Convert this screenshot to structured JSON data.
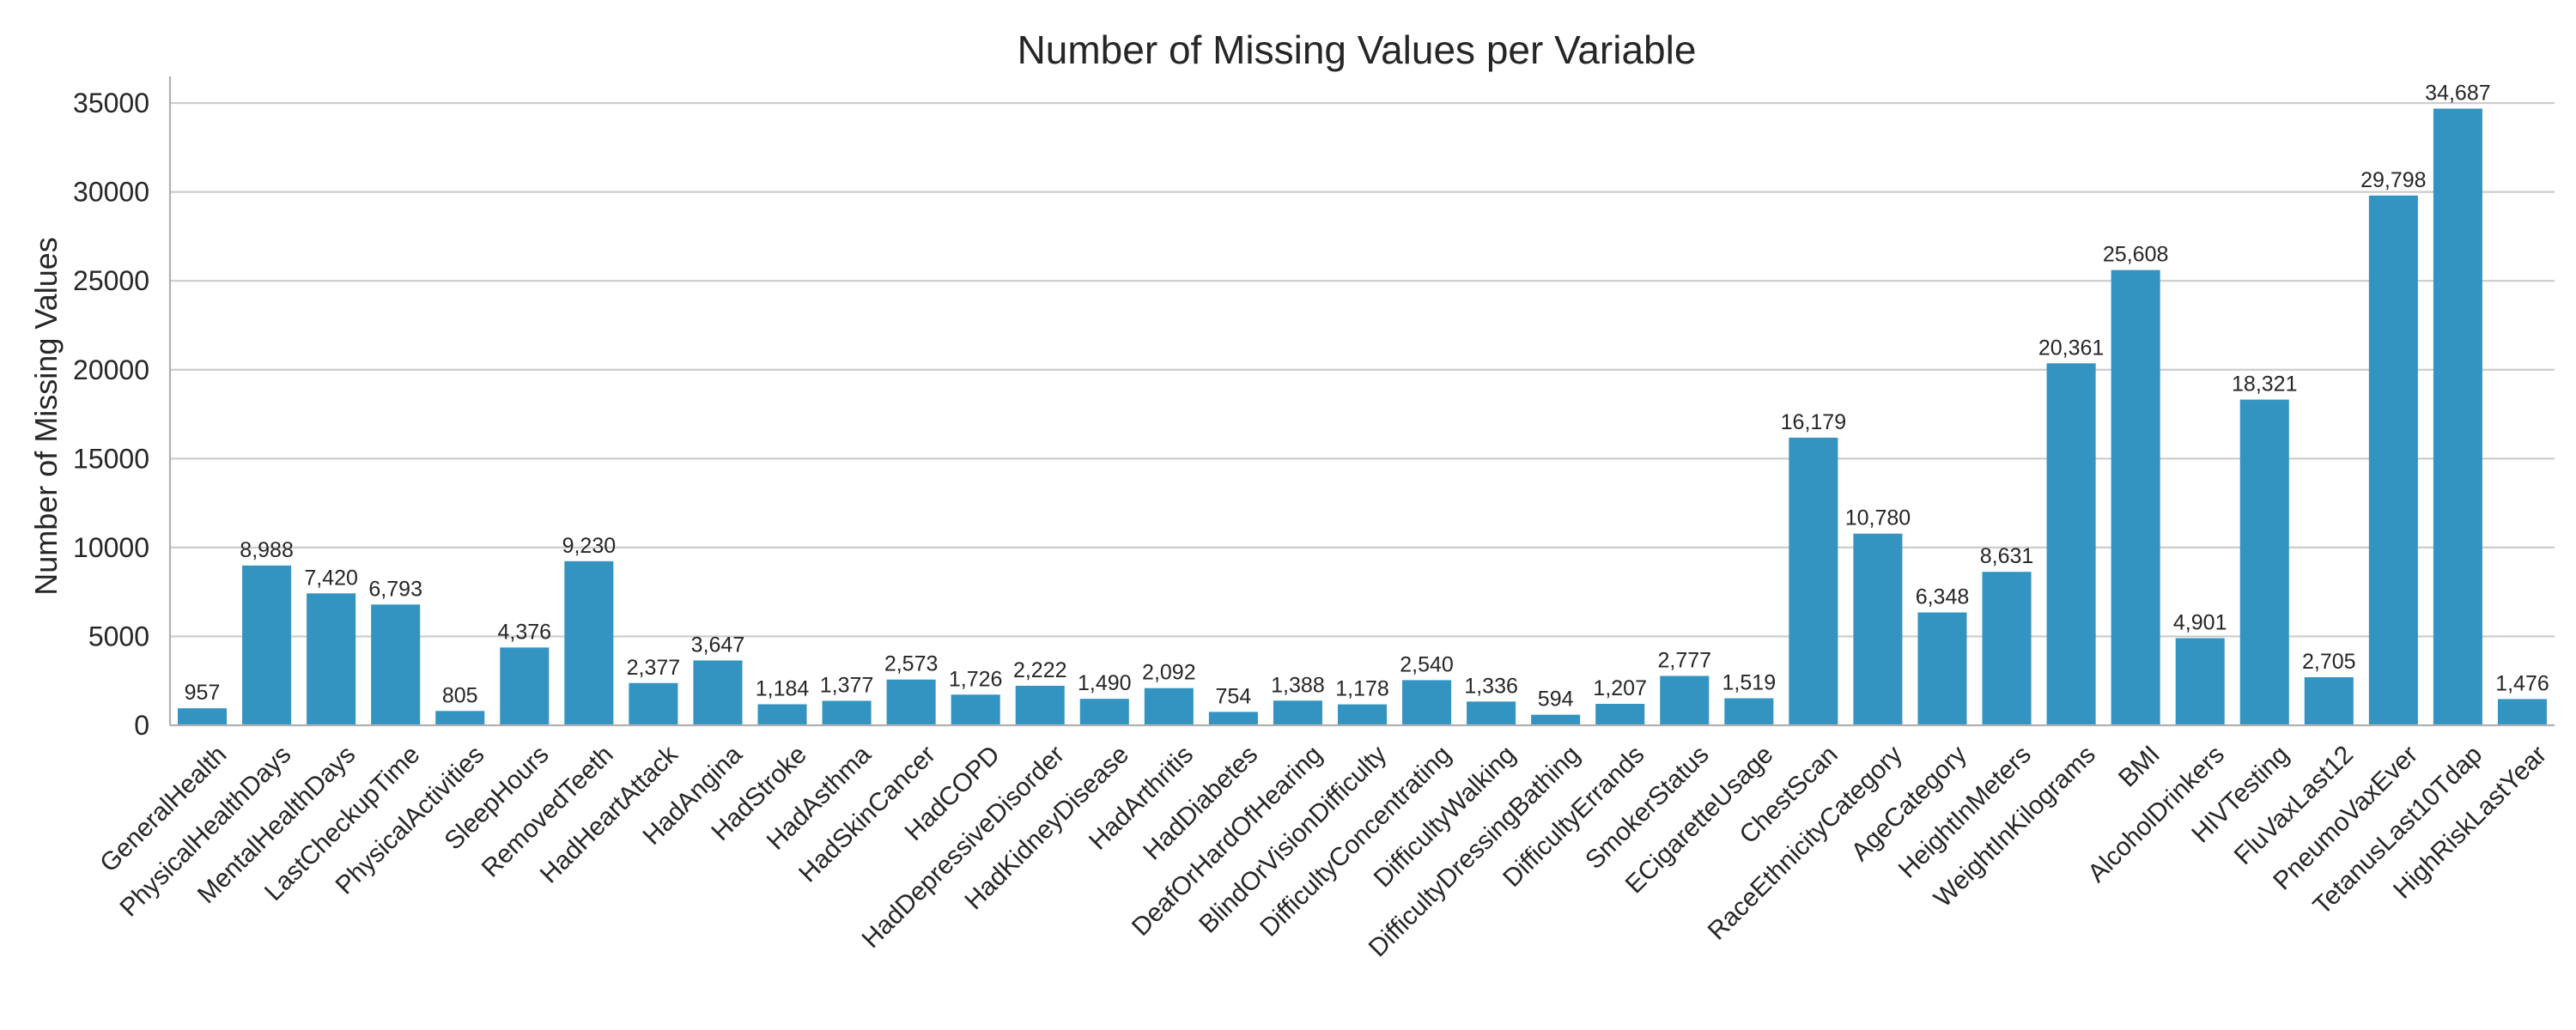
{
  "chart_data": {
    "type": "bar",
    "title": "Number of Missing Values per Variable",
    "xlabel": "",
    "ylabel": "Number of Missing Values",
    "ylim": [
      0,
      36500
    ],
    "yticks": [
      0,
      5000,
      10000,
      15000,
      20000,
      25000,
      30000,
      35000
    ],
    "grid": "horizontal",
    "color": "#3394c1",
    "categories": [
      "GeneralHealth",
      "PhysicalHealthDays",
      "MentalHealthDays",
      "LastCheckupTime",
      "PhysicalActivities",
      "SleepHours",
      "RemovedTeeth",
      "HadHeartAttack",
      "HadAngina",
      "HadStroke",
      "HadAsthma",
      "HadSkinCancer",
      "HadCOPD",
      "HadDepressiveDisorder",
      "HadKidneyDisease",
      "HadArthritis",
      "HadDiabetes",
      "DeafOrHardOfHearing",
      "BlindOrVisionDifficulty",
      "DifficultyConcentrating",
      "DifficultyWalking",
      "DifficultyDressingBathing",
      "DifficultyErrands",
      "SmokerStatus",
      "ECigaretteUsage",
      "ChestScan",
      "RaceEthnicityCategory",
      "AgeCategory",
      "HeightInMeters",
      "WeightInKilograms",
      "BMI",
      "AlcoholDrinkers",
      "HIVTesting",
      "FluVaxLast12",
      "PneumoVaxEver",
      "TetanusLast10Tdap",
      "HighRiskLastYear"
    ],
    "values": [
      957,
      8988,
      7420,
      6793,
      805,
      4376,
      9230,
      2377,
      3647,
      1184,
      1377,
      2573,
      1726,
      2222,
      1490,
      2092,
      754,
      1388,
      1178,
      2540,
      1336,
      594,
      1207,
      2777,
      1519,
      16179,
      10780,
      6348,
      8631,
      20361,
      25608,
      4901,
      18321,
      2705,
      29798,
      34687,
      1476
    ],
    "data_labels": [
      "957",
      "8,988",
      "7,420",
      "6,793",
      "805",
      "4,376",
      "9,230",
      "2,377",
      "3,647",
      "1,184",
      "1,377",
      "2,573",
      "1,726",
      "2,222",
      "1,490",
      "2,092",
      "754",
      "1,388",
      "1,178",
      "2,540",
      "1,336",
      "594",
      "1,207",
      "2,777",
      "1,519",
      "16,179",
      "10,780",
      "6,348",
      "8,631",
      "20,361",
      "25,608",
      "4,901",
      "18,321",
      "2,705",
      "29,798",
      "34,687",
      "1,476"
    ]
  }
}
